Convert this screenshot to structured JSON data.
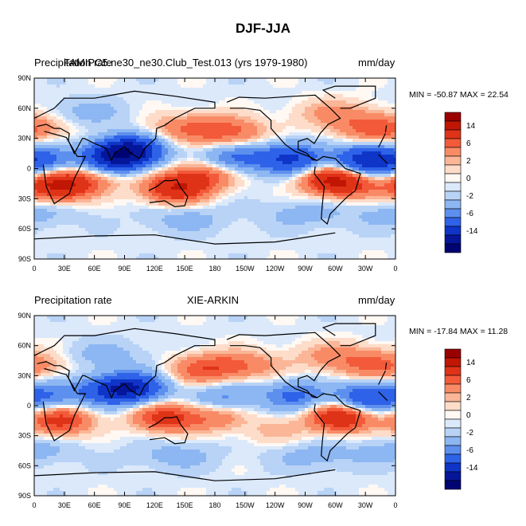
{
  "title": "DJF-JJA",
  "chart_data": [
    {
      "type": "heatmap",
      "left_label": "Precipitation rate",
      "center_label": "FAMIPC5.ne30_ne30.Club_Test.013 (yrs 1979-1980)",
      "right_label": "mm/day",
      "min_max_text": "MIN = -50.87 MAX =  22.54",
      "x_tick_labels": [
        "0",
        "30E",
        "60E",
        "90E",
        "120E",
        "150E",
        "180",
        "150W",
        "120W",
        "90W",
        "60W",
        "30W",
        "0"
      ],
      "y_tick_labels": [
        "90N",
        "60N",
        "30N",
        "0",
        "30S",
        "60S",
        "90S"
      ],
      "xlim": [
        0,
        360
      ],
      "ylim": [
        -90,
        90
      ],
      "colorbar_labels": [
        "14",
        "6",
        "2",
        "0",
        "-2",
        "-6",
        "-14"
      ],
      "min": -50.87,
      "max": 22.54,
      "blobs": [
        {
          "lon": 25,
          "lat": -17,
          "value": 12
        },
        {
          "lon": 140,
          "lat": -20,
          "value": 10
        },
        {
          "lon": 300,
          "lat": -12,
          "value": 12
        },
        {
          "lon": 345,
          "lat": 40,
          "value": 6
        },
        {
          "lon": 160,
          "lat": 40,
          "value": 5
        },
        {
          "lon": 200,
          "lat": 35,
          "value": 4
        },
        {
          "lon": 95,
          "lat": 18,
          "value": -14
        },
        {
          "lon": 80,
          "lat": 10,
          "value": -10
        },
        {
          "lon": 255,
          "lat": 10,
          "value": -10
        },
        {
          "lon": 330,
          "lat": 8,
          "value": -12
        },
        {
          "lon": 10,
          "lat": 8,
          "value": -6
        },
        {
          "lon": 200,
          "lat": 10,
          "value": -6
        },
        {
          "lon": 170,
          "lat": -7,
          "value": 6
        },
        {
          "lon": 60,
          "lat": -10,
          "value": 3
        },
        {
          "lon": 0,
          "lat": -45,
          "value": -2
        },
        {
          "lon": 150,
          "lat": -50,
          "value": -2
        },
        {
          "lon": 270,
          "lat": -45,
          "value": -2
        },
        {
          "lon": 330,
          "lat": -20,
          "value": 2
        },
        {
          "lon": 50,
          "lat": 55,
          "value": -2
        },
        {
          "lon": 300,
          "lat": 55,
          "value": 3
        }
      ]
    },
    {
      "type": "heatmap",
      "left_label": "Precipitation rate",
      "center_label": "XIE-ARKIN",
      "right_label": "mm/day",
      "min_max_text": "MIN = -17.84 MAX =  11.28",
      "x_tick_labels": [
        "0",
        "30E",
        "60E",
        "90E",
        "120E",
        "150E",
        "180",
        "150W",
        "120W",
        "90W",
        "60W",
        "30W",
        "0"
      ],
      "y_tick_labels": [
        "90N",
        "60N",
        "30N",
        "0",
        "30S",
        "60S",
        "90S"
      ],
      "xlim": [
        0,
        360
      ],
      "ylim": [
        -90,
        90
      ],
      "colorbar_labels": [
        "14",
        "6",
        "2",
        "0",
        "-2",
        "-6",
        "-14"
      ],
      "min": -17.84,
      "max": 11.28,
      "blobs": [
        {
          "lon": 25,
          "lat": -15,
          "value": 8
        },
        {
          "lon": 130,
          "lat": -12,
          "value": 8
        },
        {
          "lon": 305,
          "lat": -12,
          "value": 10
        },
        {
          "lon": 345,
          "lat": 40,
          "value": 5
        },
        {
          "lon": 200,
          "lat": 40,
          "value": 5
        },
        {
          "lon": 165,
          "lat": 35,
          "value": 4
        },
        {
          "lon": 100,
          "lat": 18,
          "value": -10
        },
        {
          "lon": 75,
          "lat": 15,
          "value": -8
        },
        {
          "lon": 260,
          "lat": 10,
          "value": -6
        },
        {
          "lon": 330,
          "lat": 8,
          "value": -8
        },
        {
          "lon": 15,
          "lat": 10,
          "value": -5
        },
        {
          "lon": 190,
          "lat": 8,
          "value": -4
        },
        {
          "lon": 180,
          "lat": -12,
          "value": 4
        },
        {
          "lon": 240,
          "lat": -25,
          "value": 2
        },
        {
          "lon": 0,
          "lat": -45,
          "value": -2
        },
        {
          "lon": 140,
          "lat": -50,
          "value": -2
        },
        {
          "lon": 280,
          "lat": -50,
          "value": -2
        },
        {
          "lon": 70,
          "lat": 50,
          "value": -2
        },
        {
          "lon": 300,
          "lat": 50,
          "value": 3
        }
      ]
    }
  ],
  "colorbar_colors": [
    "#9b0000",
    "#c21604",
    "#df3318",
    "#f25a3a",
    "#f88b66",
    "#fab697",
    "#fddcc9",
    "#fff8f3",
    "#dbe9fb",
    "#b8d3f6",
    "#8db7f2",
    "#5d8fee",
    "#2e62e8",
    "#0f34c8",
    "#05169a",
    "#000472"
  ]
}
